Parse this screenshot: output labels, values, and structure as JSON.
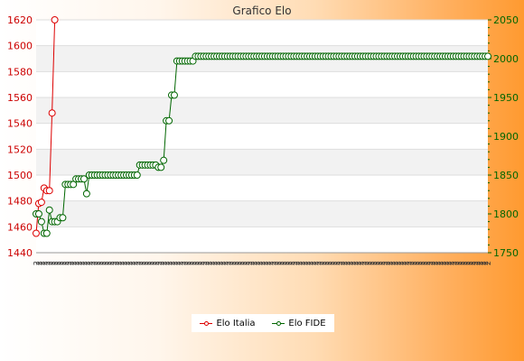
{
  "chart_data": {
    "type": "line",
    "title": "Grafico Elo",
    "left_axis": {
      "min": 1440,
      "max": 1620,
      "ticks": [
        1440,
        1460,
        1480,
        1500,
        1520,
        1540,
        1560,
        1580,
        1600,
        1620
      ],
      "color": "#cc0000"
    },
    "right_axis": {
      "min": 1750,
      "max": 2050,
      "ticks": [
        1750,
        1800,
        1850,
        1900,
        1950,
        2000,
        2050
      ],
      "color": "#006600"
    },
    "x_tick_label": "2",
    "grid": true,
    "legend": "bottom-center",
    "series": [
      {
        "name": "Elo Italia",
        "axis": "left",
        "color": "#dd0000",
        "values": [
          1455,
          1478,
          1479,
          1490,
          1488,
          1488,
          1548,
          1620
        ]
      },
      {
        "name": "Elo FIDE",
        "axis": "right",
        "color": "#006600",
        "values": [
          1800,
          1800,
          1790,
          1775,
          1775,
          1805,
          1790,
          1790,
          1790,
          1795,
          1795,
          1838,
          1838,
          1838,
          1838,
          1845,
          1845,
          1845,
          1845,
          1826,
          1850,
          1850,
          1850,
          1850,
          1850,
          1850,
          1850,
          1850,
          1850,
          1850,
          1850,
          1850,
          1850,
          1850,
          1850,
          1850,
          1850,
          1850,
          1850,
          1863,
          1863,
          1863,
          1863,
          1863,
          1863,
          1863,
          1860,
          1860,
          1869,
          1920,
          1920,
          1953,
          1953,
          1997,
          1997,
          1997,
          1997,
          1997,
          1997,
          1997,
          2003,
          2003,
          2003,
          2003,
          2003,
          2003,
          2003,
          2003,
          2003,
          2003,
          2003,
          2003,
          2003,
          2003,
          2003,
          2003,
          2003,
          2003,
          2003,
          2003,
          2003,
          2003,
          2003,
          2003,
          2003,
          2003,
          2003,
          2003,
          2003,
          2003,
          2003,
          2003,
          2003,
          2003,
          2003,
          2003,
          2003,
          2003,
          2003,
          2003,
          2003,
          2003,
          2003,
          2003,
          2003,
          2003,
          2003,
          2003,
          2003,
          2003,
          2003,
          2003,
          2003,
          2003,
          2003,
          2003,
          2003,
          2003,
          2003,
          2003,
          2003,
          2003,
          2003,
          2003,
          2003,
          2003,
          2003,
          2003,
          2003,
          2003,
          2003,
          2003,
          2003,
          2003,
          2003,
          2003,
          2003,
          2003,
          2003,
          2003,
          2003,
          2003,
          2003,
          2003,
          2003,
          2003,
          2003,
          2003,
          2003,
          2003,
          2003,
          2003,
          2003,
          2003,
          2003,
          2003,
          2003,
          2003,
          2003,
          2003,
          2003,
          2003,
          2003,
          2003,
          2003,
          2003,
          2003,
          2003,
          2003,
          2003,
          2003
        ]
      }
    ]
  }
}
